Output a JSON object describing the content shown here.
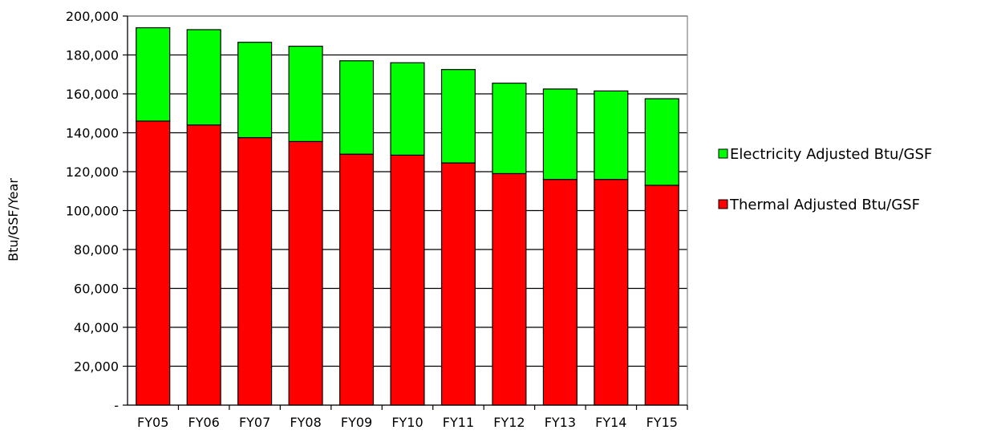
{
  "chart_data": {
    "type": "bar",
    "stacked": true,
    "categories": [
      "FY05",
      "FY06",
      "FY07",
      "FY08",
      "FY09",
      "FY10",
      "FY11",
      "FY12",
      "FY13",
      "FY14",
      "FY15"
    ],
    "series": [
      {
        "name": "Thermal Adjusted Btu/GSF",
        "color": "#ff0000",
        "values": [
          146000,
          144000,
          137500,
          135500,
          129000,
          128500,
          124500,
          119000,
          116000,
          116000,
          113000
        ]
      },
      {
        "name": "Electricity Adjusted Btu/GSF",
        "color": "#00ff00",
        "values": [
          48000,
          49000,
          49000,
          49000,
          48000,
          47500,
          48000,
          46500,
          46500,
          45500,
          44500
        ]
      }
    ],
    "title": "",
    "xlabel": "",
    "ylabel": "Btu/GSF/Year",
    "ylim": [
      0,
      200000
    ],
    "yticks": [
      0,
      20000,
      40000,
      60000,
      80000,
      100000,
      120000,
      140000,
      160000,
      180000,
      200000
    ],
    "ytick_labels": [
      "-",
      "20,000",
      "40,000",
      "60,000",
      "80,000",
      "100,000",
      "120,000",
      "140,000",
      "160,000",
      "180,000",
      "200,000"
    ],
    "grid": true,
    "legend_position": "right",
    "legend_order": [
      "Electricity Adjusted Btu/GSF",
      "Thermal Adjusted Btu/GSF"
    ]
  }
}
